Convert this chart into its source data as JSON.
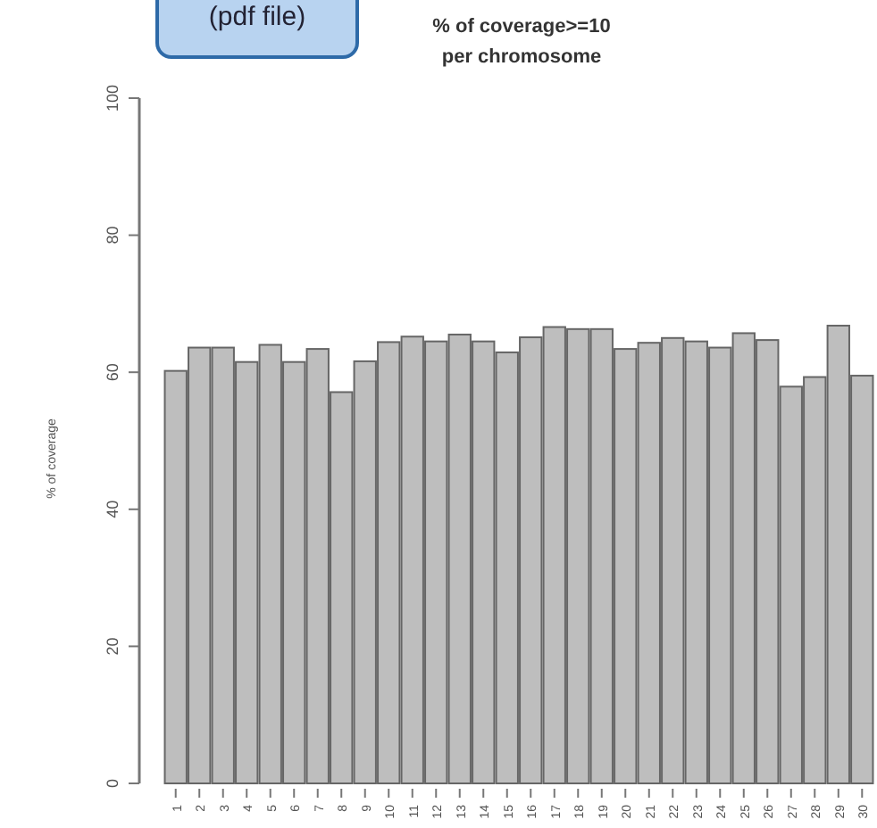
{
  "chart_data": {
    "type": "bar",
    "title": "% of coverage>=10\nper chromosome",
    "ylabel": "% of coverage",
    "annotations": [
      "(pdf file)"
    ],
    "categories": [
      "1",
      "2",
      "3",
      "4",
      "5",
      "6",
      "7",
      "8",
      "9",
      "10",
      "11",
      "12",
      "13",
      "14",
      "15",
      "16",
      "17",
      "18",
      "19",
      "20",
      "21",
      "22",
      "23",
      "24",
      "25",
      "26",
      "27",
      "28",
      "29",
      "30"
    ],
    "values": [
      60.2,
      63.6,
      63.6,
      61.5,
      64.0,
      61.5,
      63.4,
      57.1,
      61.6,
      64.4,
      65.2,
      64.5,
      65.5,
      64.5,
      62.9,
      65.1,
      66.6,
      66.3,
      66.3,
      63.4,
      64.3,
      65.0,
      64.5,
      63.6,
      65.7,
      64.7,
      57.9,
      59.3,
      66.8,
      59.5
    ],
    "color": "#bebebe",
    "ylim": [
      0,
      100
    ],
    "yticks": [
      0,
      20,
      40,
      60,
      80,
      100
    ],
    "grid": false
  }
}
